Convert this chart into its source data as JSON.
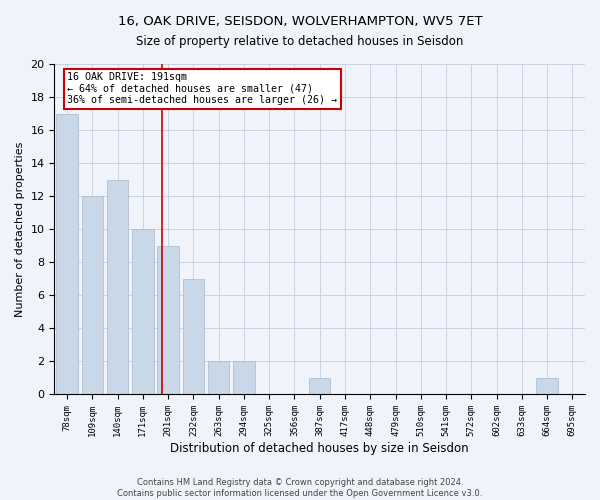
{
  "title1": "16, OAK DRIVE, SEISDON, WOLVERHAMPTON, WV5 7ET",
  "title2": "Size of property relative to detached houses in Seisdon",
  "xlabel": "Distribution of detached houses by size in Seisdon",
  "ylabel": "Number of detached properties",
  "categories": [
    "78sqm",
    "109sqm",
    "140sqm",
    "171sqm",
    "201sqm",
    "232sqm",
    "263sqm",
    "294sqm",
    "325sqm",
    "356sqm",
    "387sqm",
    "417sqm",
    "448sqm",
    "479sqm",
    "510sqm",
    "541sqm",
    "572sqm",
    "602sqm",
    "633sqm",
    "664sqm",
    "695sqm"
  ],
  "values": [
    17,
    12,
    13,
    10,
    9,
    7,
    2,
    2,
    0,
    0,
    1,
    0,
    0,
    0,
    0,
    0,
    0,
    0,
    0,
    1,
    0
  ],
  "bar_color": "#c8d8e8",
  "bar_edge_color": "#a8b8cc",
  "grid_color": "#c8d4e4",
  "annotation_text": "16 OAK DRIVE: 191sqm\n← 64% of detached houses are smaller (47)\n36% of semi-detached houses are larger (26) →",
  "annotation_box_color": "#ffffff",
  "annotation_box_edge_color": "#cc0000",
  "vline_color": "#cc0000",
  "vline_x": 3.77,
  "ylim": [
    0,
    20
  ],
  "yticks": [
    0,
    2,
    4,
    6,
    8,
    10,
    12,
    14,
    16,
    18,
    20
  ],
  "footer1": "Contains HM Land Registry data © Crown copyright and database right 2024.",
  "footer2": "Contains public sector information licensed under the Open Government Licence v3.0.",
  "background_color": "#f0f4fa"
}
